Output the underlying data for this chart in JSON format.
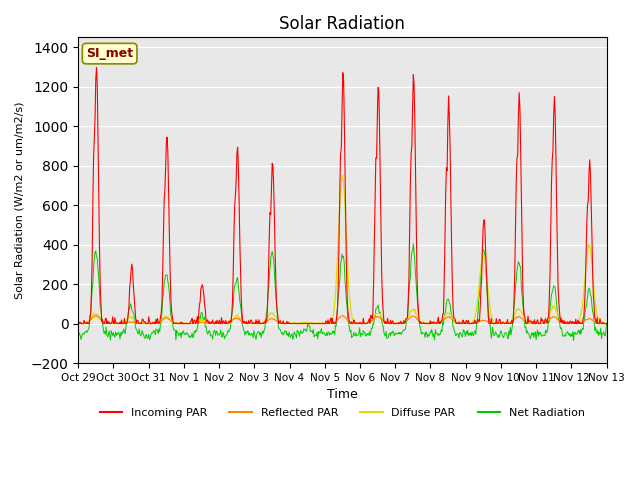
{
  "title": "Solar Radiation",
  "xlabel": "Time",
  "ylabel": "Solar Radiation (W/m2 or um/m2/s)",
  "ylim": [
    -200,
    1450
  ],
  "yticks": [
    -200,
    0,
    200,
    400,
    600,
    800,
    1000,
    1200,
    1400
  ],
  "x_tick_labels": [
    "Oct 29",
    "Oct 30",
    "Oct 31",
    "Nov 1",
    "Nov 2",
    "Nov 3",
    "Nov 4",
    "Nov 5",
    "Nov 6",
    "Nov 7",
    "Nov 8",
    "Nov 9",
    "Nov 10",
    "Nov 11",
    "Nov 12",
    "Nov 13"
  ],
  "annotation_text": "SI_met",
  "bg_color": "#e8e8e8",
  "line_colors": {
    "incoming": "#ff0000",
    "reflected": "#ff8800",
    "diffuse": "#dddd00",
    "net": "#00cc00"
  },
  "legend_labels": [
    "Incoming PAR",
    "Reflected PAR",
    "Diffuse PAR",
    "Net Radiation"
  ],
  "n_days": 15,
  "pts_per_day": 48,
  "incoming_peaks": [
    1320,
    280,
    960,
    210,
    900,
    810,
    0,
    1270,
    1200,
    1260,
    1130,
    540,
    1170,
    1150,
    820
  ],
  "diffuse_peaks": [
    50,
    30,
    35,
    20,
    35,
    55,
    5,
    750,
    55,
    70,
    55,
    350,
    75,
    85,
    400
  ],
  "net_peaks": [
    370,
    90,
    250,
    45,
    230,
    360,
    -20,
    350,
    75,
    380,
    125,
    380,
    320,
    190,
    175
  ],
  "night_net": -55,
  "incoming_sigma": 0.055,
  "net_sigma": 0.09,
  "diffuse_sigma": 0.11
}
